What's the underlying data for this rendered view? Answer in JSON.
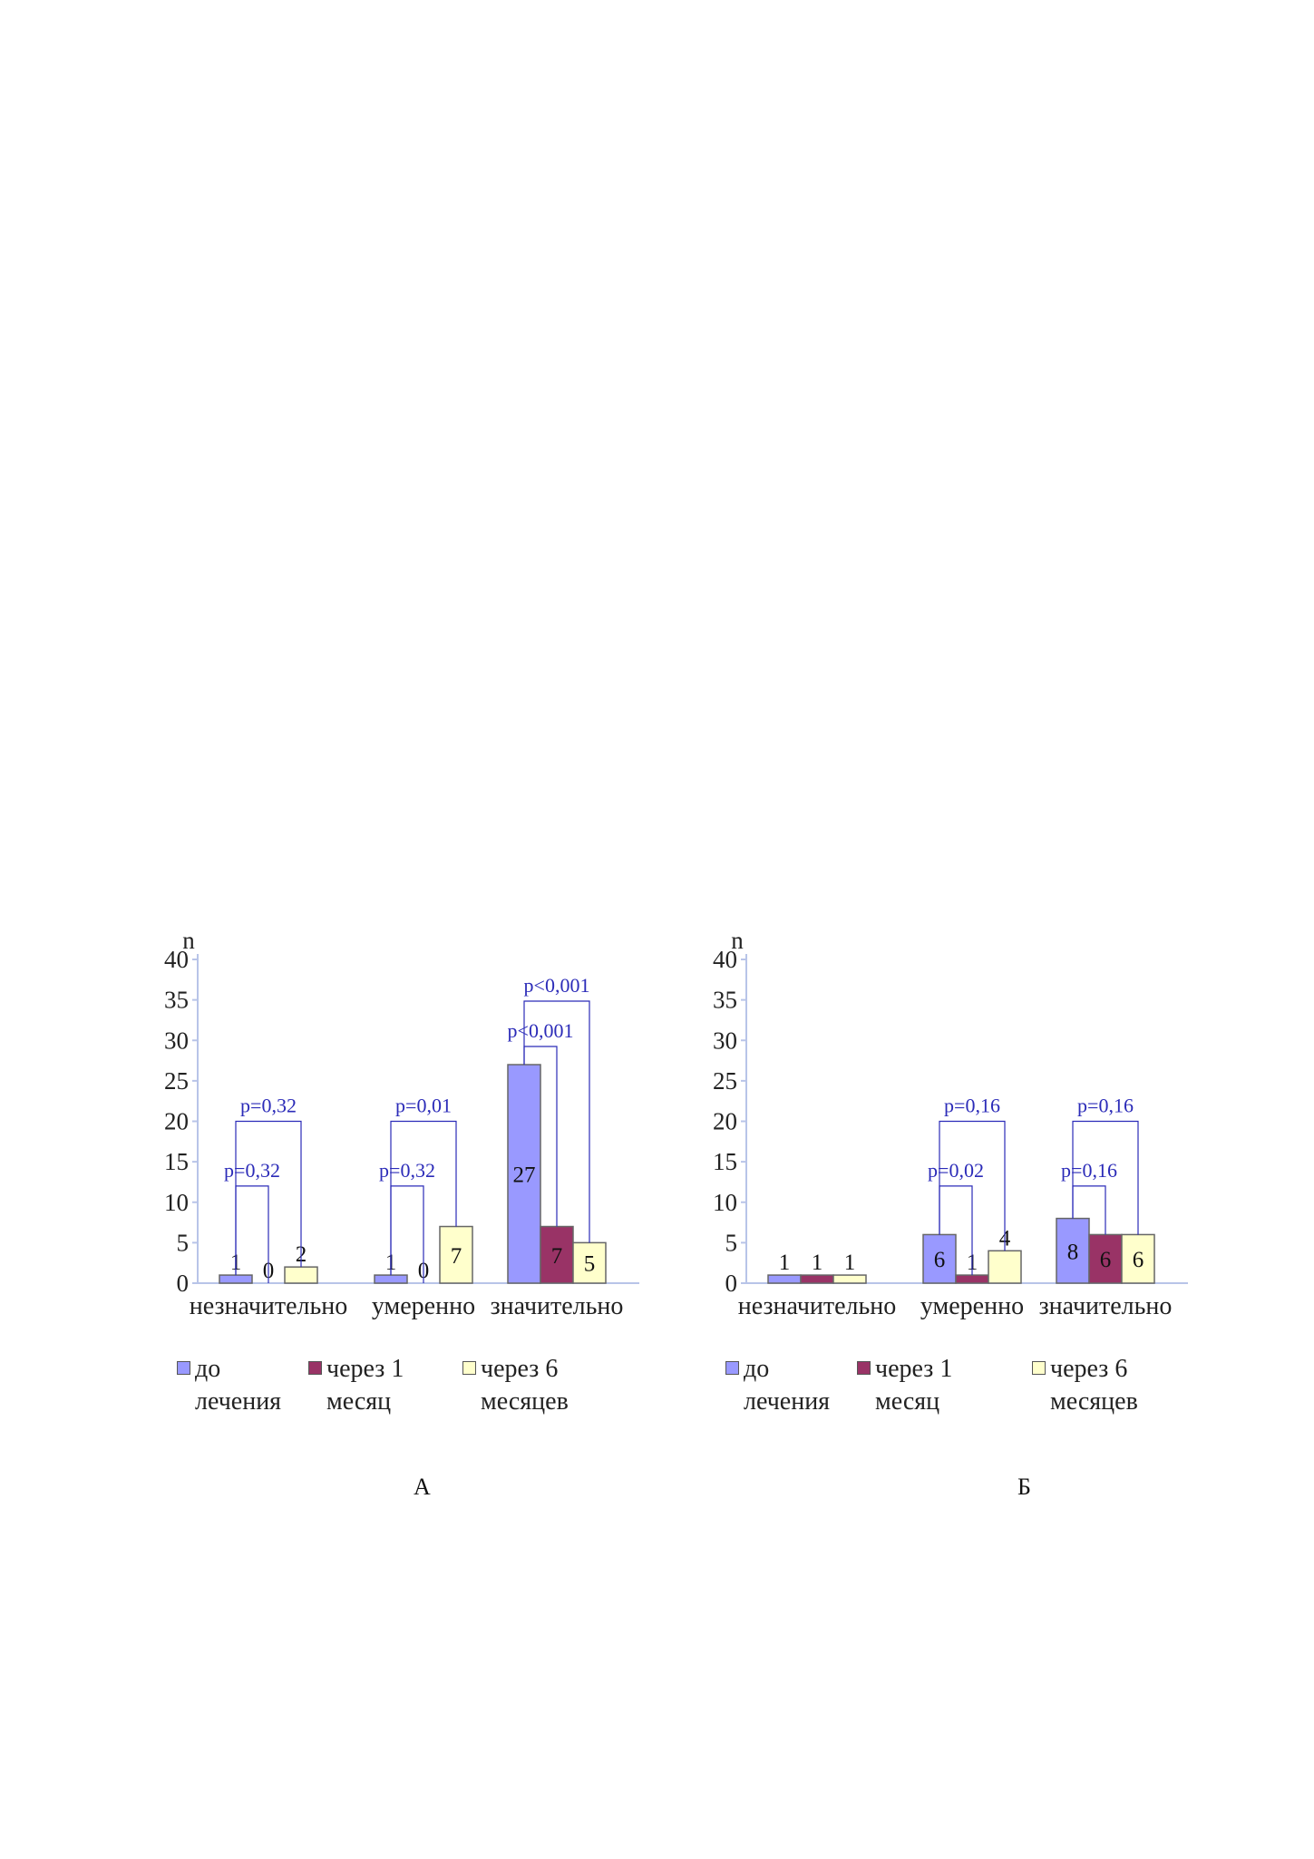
{
  "colors": {
    "before": "#9999ff",
    "month1": "#993366",
    "month6": "#ffffcc",
    "axis": "#b8c4e8",
    "bracket": "#2b2bb8"
  },
  "legend": [
    "до лечения",
    "через 1 месяц",
    "через 6 месяцев"
  ],
  "chart_data": [
    {
      "type": "bar",
      "panel_label": "А",
      "ylabel": "n",
      "ylim": [
        0,
        40
      ],
      "yticks": [
        "0",
        "5",
        "10",
        "15",
        "20",
        "25",
        "30",
        "35",
        "40"
      ],
      "categories": [
        "незначительно",
        "умеренно",
        "значительно"
      ],
      "series": [
        {
          "name": "до лечения",
          "values": [
            1,
            1,
            27
          ]
        },
        {
          "name": "через 1 месяц",
          "values": [
            0,
            0,
            7
          ]
        },
        {
          "name": "через 6 месяцев",
          "values": [
            2,
            7,
            5
          ]
        }
      ],
      "comparisons": [
        {
          "category": 0,
          "from": 0,
          "to": 2,
          "p": "p=0,32"
        },
        {
          "category": 0,
          "from": 0,
          "to": 1,
          "p": "p=0,32"
        },
        {
          "category": 1,
          "from": 0,
          "to": 2,
          "p": "p=0,01"
        },
        {
          "category": 1,
          "from": 0,
          "to": 1,
          "p": "p=0,32"
        },
        {
          "category": 2,
          "from": 0,
          "to": 2,
          "p": "p<0,001"
        },
        {
          "category": 2,
          "from": 0,
          "to": 1,
          "p": "p<0,001"
        }
      ]
    },
    {
      "type": "bar",
      "panel_label": "Б",
      "ylabel": "n",
      "ylim": [
        0,
        40
      ],
      "yticks": [
        "0",
        "5",
        "10",
        "15",
        "20",
        "25",
        "30",
        "35",
        "40"
      ],
      "categories": [
        "незначительно",
        "умеренно",
        "значительно"
      ],
      "series": [
        {
          "name": "до лечения",
          "values": [
            1,
            6,
            8
          ]
        },
        {
          "name": "через 1 месяц",
          "values": [
            1,
            1,
            6
          ]
        },
        {
          "name": "через 6 месяцев",
          "values": [
            1,
            4,
            6
          ]
        }
      ],
      "comparisons": [
        {
          "category": 1,
          "from": 0,
          "to": 2,
          "p": "p=0,16"
        },
        {
          "category": 1,
          "from": 0,
          "to": 1,
          "p": "p=0,02"
        },
        {
          "category": 2,
          "from": 0,
          "to": 2,
          "p": "p=0,16"
        },
        {
          "category": 2,
          "from": 0,
          "to": 1,
          "p": "p=0,16"
        }
      ]
    }
  ]
}
